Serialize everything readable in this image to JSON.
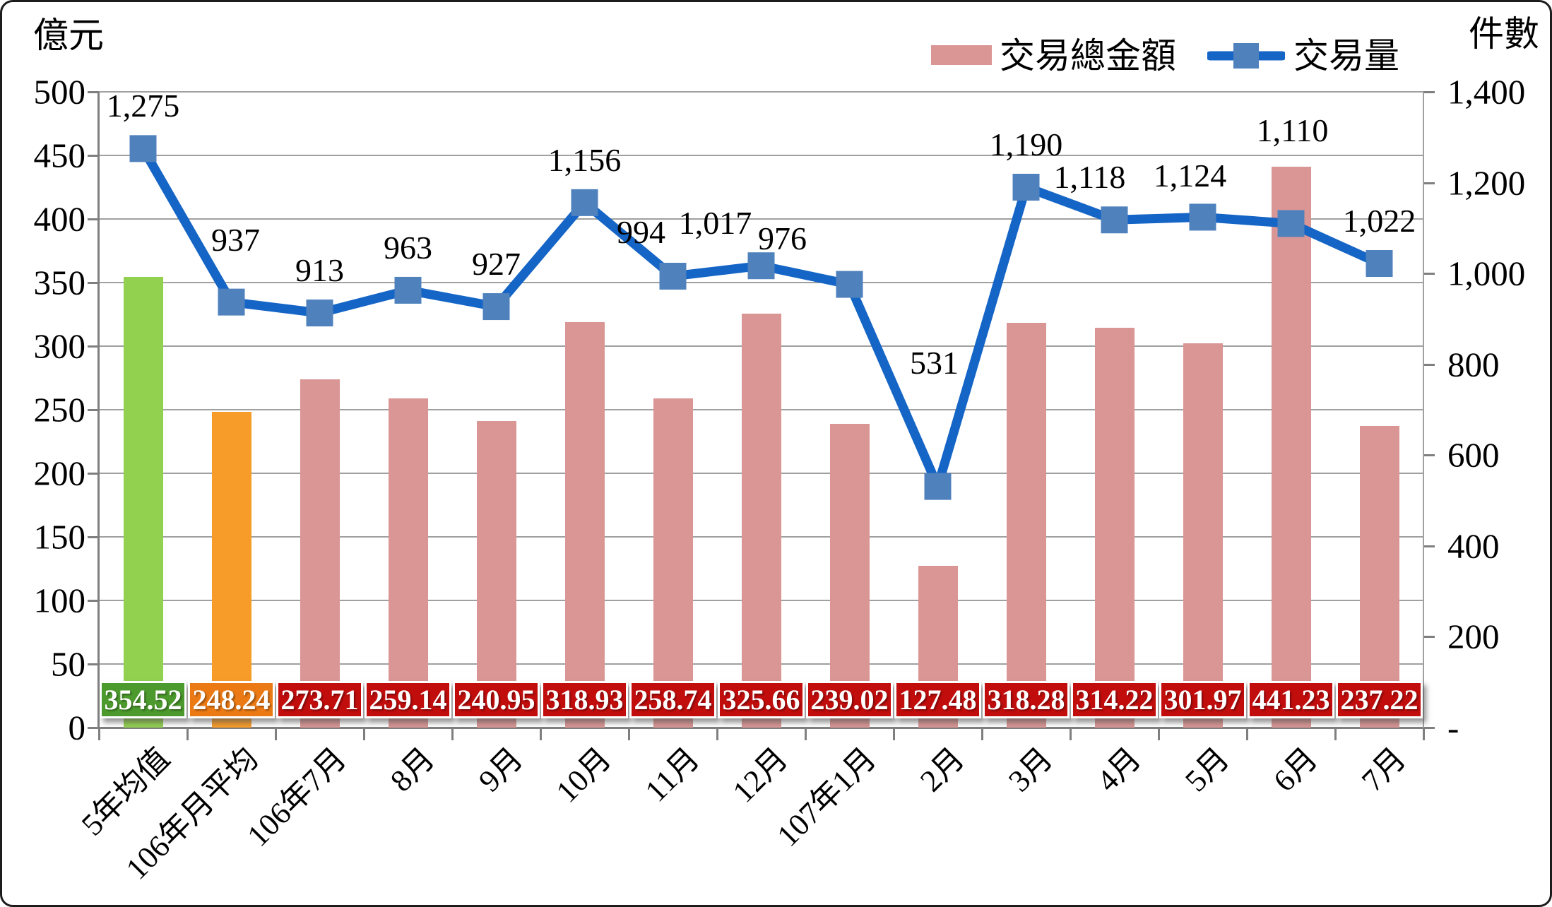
{
  "axes_titles": {
    "left": "億元",
    "right": "件數"
  },
  "legend": {
    "items": [
      {
        "label": "交易總金額",
        "type": "bar",
        "color": "#D99694"
      },
      {
        "label": "交易量",
        "type": "line",
        "line_color": "#1565C6",
        "marker_color": "#4F81BD"
      }
    ]
  },
  "chart_data": {
    "type": "bar+line combo",
    "categories": [
      "5年均值",
      "106年月平均",
      "106年7月",
      "8月",
      "9月",
      "10月",
      "11月",
      "12月",
      "107年1月",
      "2月",
      "3月",
      "4月",
      "5月",
      "6月",
      "7月"
    ],
    "series": [
      {
        "name": "交易總金額",
        "type": "bar",
        "axis": "left",
        "values": [
          354.52,
          248.24,
          273.71,
          259.14,
          240.95,
          318.93,
          258.74,
          325.66,
          239.02,
          127.48,
          318.28,
          314.22,
          301.97,
          441.23,
          237.22
        ],
        "labels": [
          "354.52",
          "248.24",
          "273.71",
          "259.14",
          "240.95",
          "318.93",
          "258.74",
          "325.66",
          "239.02",
          "127.48",
          "318.28",
          "314.22",
          "301.97",
          "441.23",
          "237.22"
        ],
        "bar_colors": [
          "#92D050",
          "#F79B29",
          "#D99694",
          "#D99694",
          "#D99694",
          "#D99694",
          "#D99694",
          "#D99694",
          "#D99694",
          "#D99694",
          "#D99694",
          "#D99694",
          "#D99694",
          "#D99694",
          "#D99694"
        ],
        "label_box_colors": [
          "#4C9A2D",
          "#EB7A15",
          "#C20D0D",
          "#C20D0D",
          "#C20D0D",
          "#C20D0D",
          "#C20D0D",
          "#C20D0D",
          "#C20D0D",
          "#C20D0D",
          "#C20D0D",
          "#C20D0D",
          "#C20D0D",
          "#C20D0D",
          "#C20D0D"
        ]
      },
      {
        "name": "交易量",
        "type": "line",
        "axis": "right",
        "values": [
          1275,
          937,
          913,
          963,
          927,
          1156,
          994,
          1017,
          976,
          531,
          1190,
          1118,
          1124,
          1110,
          1022
        ],
        "labels": [
          "1,275",
          "937",
          "913",
          "963",
          "927",
          "1,156",
          "994",
          "1,017",
          "976",
          "531",
          "1,190",
          "1,118",
          "1,124",
          "1,110",
          "1,022"
        ],
        "line_color": "#1565C6",
        "marker_color": "#4F81BD"
      }
    ],
    "left_axis": {
      "title": "億元",
      "min": 0,
      "max": 500,
      "step": 50,
      "tick_labels": [
        "500",
        "450",
        "400",
        "350",
        "300",
        "250",
        "200",
        "150",
        "100",
        "50",
        "0"
      ]
    },
    "right_axis": {
      "title": "件數",
      "min": 0,
      "max": 1400,
      "step": 200,
      "tick_labels": [
        "1,400",
        "1,200",
        "1,000",
        "800",
        "600",
        "400",
        "200",
        "-"
      ]
    },
    "grid": true,
    "legend_position": "top-right"
  }
}
